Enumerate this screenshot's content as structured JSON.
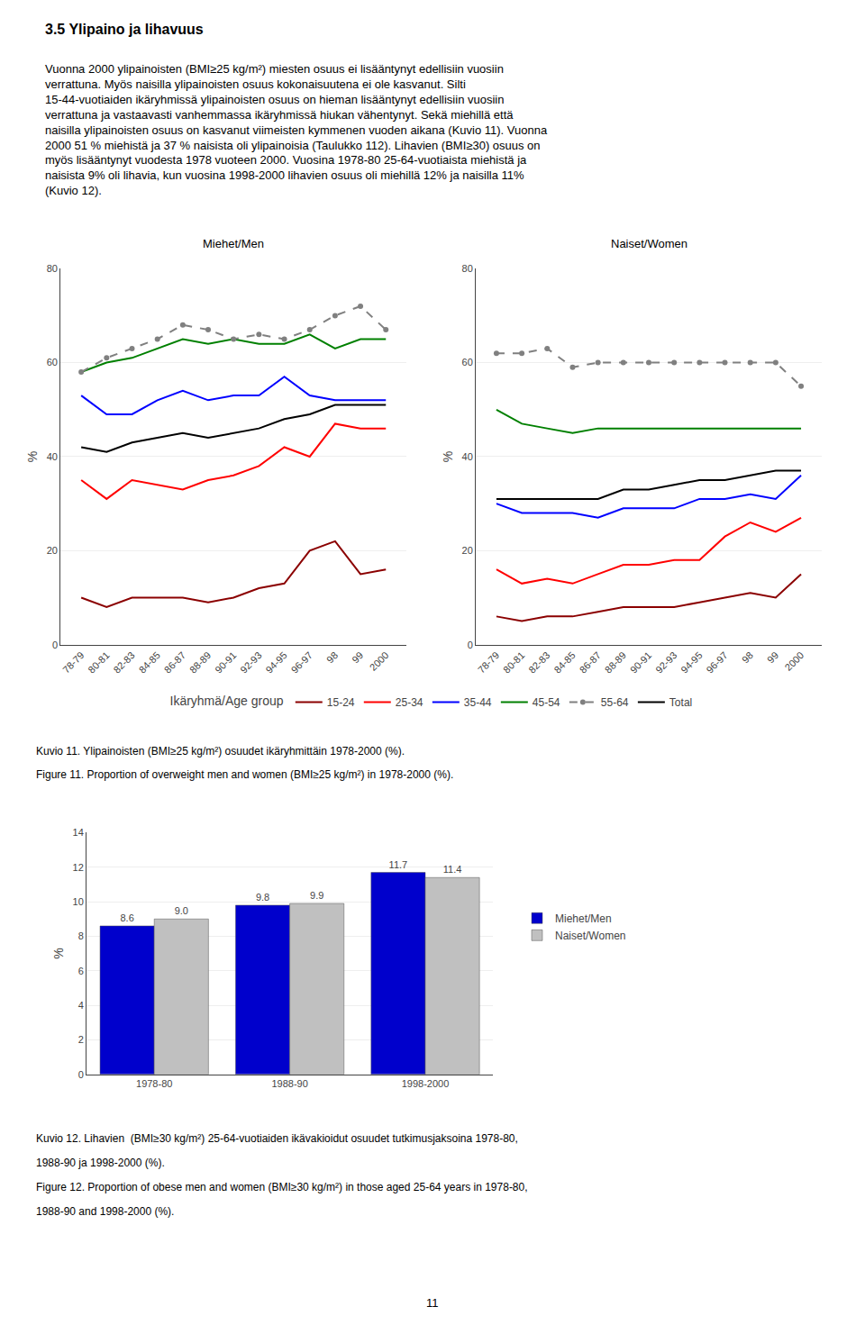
{
  "chart_data": [
    {
      "type": "line",
      "title": "Miehet/Men",
      "ylabel": "%",
      "categories": [
        "78-79",
        "80-81",
        "82-83",
        "84-85",
        "86-87",
        "88-89",
        "90-91",
        "92-93",
        "94-95",
        "96-97",
        "98",
        "99",
        "2000"
      ],
      "series": [
        {
          "name": "15-24",
          "color": "#8B0000",
          "values": [
            10,
            8,
            10,
            10,
            10,
            9,
            10,
            12,
            13,
            20,
            22,
            15,
            16
          ]
        },
        {
          "name": "25-34",
          "color": "#FF0000",
          "values": [
            35,
            31,
            35,
            34,
            33,
            35,
            36,
            38,
            42,
            40,
            47,
            46,
            46
          ]
        },
        {
          "name": "35-44",
          "color": "#0000FF",
          "values": [
            53,
            49,
            49,
            52,
            54,
            52,
            53,
            53,
            57,
            53,
            52,
            52,
            52
          ]
        },
        {
          "name": "45-54",
          "color": "#008000",
          "values": [
            58,
            60,
            61,
            63,
            65,
            64,
            65,
            64,
            64,
            66,
            63,
            65,
            65
          ]
        },
        {
          "name": "55-64",
          "color": "#808080",
          "line_style": "dashed",
          "marker": "circle",
          "values": [
            58,
            61,
            63,
            65,
            68,
            67,
            65,
            66,
            65,
            67,
            70,
            72,
            67
          ]
        },
        {
          "name": "Total",
          "color": "#000000",
          "values": [
            42,
            41,
            43,
            44,
            45,
            44,
            45,
            46,
            48,
            49,
            51,
            51,
            51
          ]
        }
      ],
      "ylim": [
        0,
        80
      ],
      "yticks": [
        0,
        20,
        40,
        60,
        80
      ],
      "grid": true,
      "legend": "bottom",
      "annotations": [
        "3.5 Ylipaino ja lihavuus",
        "Vuonna 2000 ylipainoisten (BMI≥25 kg/m²) miesten osuus ei lisääntynyt edellisiin vuosiin verrattuna. Myös naisilla ylipainoisten osuus kokonaisuutena ei ole kasvanut. Silti 15-44-vuotiaiden ikäryhmissä ylipainoisten osuus on hieman lisääntynyt edellisiin vuosiin verrattuna ja vastaavasti vanhemmassa ikäryhmissä hiukan vähentynyt. Sekä miehillä että naisilla ylipainoisten osuus on kasvanut viimeisten kymmenen vuoden aikana (Kuvio 11). Vuonna 2000 51 % miehistä ja 37 % naisista oli ylipainoisia (Taulukko 112). Lihavien (BMI≥30) osuus on myös lisääntynyt vuodesta 1978 vuoteen 2000. Vuosina 1978-80 25-64-vuotiaista miehistä ja naisista 9% oli lihavia, kun vuosina 1998-2000 lihavien osuus oli miehillä 12% ja naisilla 11% (Kuvio 12).",
        "Ikäryhmä/Age group"
      ]
    },
    {
      "type": "line",
      "title": "Naiset/Women",
      "ylabel": "%",
      "categories": [
        "78-79",
        "80-81",
        "82-83",
        "84-85",
        "86-87",
        "88-89",
        "90-91",
        "92-93",
        "94-95",
        "96-97",
        "98",
        "99",
        "2000"
      ],
      "series": [
        {
          "name": "15-24",
          "color": "#8B0000",
          "values": [
            6,
            5,
            6,
            6,
            7,
            8,
            8,
            8,
            9,
            10,
            11,
            10,
            15
          ]
        },
        {
          "name": "25-34",
          "color": "#FF0000",
          "values": [
            16,
            13,
            14,
            13,
            15,
            17,
            17,
            18,
            18,
            23,
            26,
            24,
            27
          ]
        },
        {
          "name": "35-44",
          "color": "#0000FF",
          "values": [
            30,
            28,
            28,
            28,
            27,
            29,
            29,
            29,
            31,
            31,
            32,
            31,
            36
          ]
        },
        {
          "name": "45-54",
          "color": "#008000",
          "values": [
            50,
            47,
            46,
            45,
            46,
            46,
            46,
            46,
            46,
            46,
            46,
            46,
            46
          ]
        },
        {
          "name": "55-64",
          "color": "#808080",
          "line_style": "dashed",
          "marker": "circle",
          "values": [
            62,
            62,
            63,
            59,
            60,
            60,
            60,
            60,
            60,
            60,
            60,
            60,
            55
          ]
        },
        {
          "name": "Total",
          "color": "#000000",
          "values": [
            31,
            31,
            31,
            31,
            31,
            33,
            33,
            34,
            35,
            35,
            36,
            37,
            37
          ]
        }
      ],
      "ylim": [
        0,
        80
      ],
      "yticks": [
        0,
        20,
        40,
        60,
        80
      ],
      "grid": true,
      "annotations": [
        "Kuvio 11. Ylipainoisten (BMI≥25 kg/m²) osuudet ikäryhmittäin 1978-2000 (%).",
        "Figure 11. Proportion of overweight men and women (BMI≥25 kg/m²) in 1978-2000 (%)."
      ]
    },
    {
      "type": "bar",
      "ylabel": "%",
      "categories": [
        "1978-80",
        "1988-90",
        "1998-2000"
      ],
      "series": [
        {
          "name": "Miehet/Men",
          "color": "#0000CC",
          "values": [
            8.6,
            9.8,
            11.7
          ]
        },
        {
          "name": "Naiset/Women",
          "color": "#C0C0C0",
          "values": [
            9.0,
            9.9,
            11.4
          ],
          "value_labels": [
            "9.0",
            "9.9",
            "11.4"
          ]
        }
      ],
      "ylim": [
        0,
        14
      ],
      "yticks": [
        0,
        2,
        4,
        6,
        8,
        10,
        12,
        14
      ],
      "grid": true,
      "legend": "right",
      "data_labels": true,
      "annotations": [
        "Kuvio 12. Lihavien  (BMI≥30 kg/m²) 25-64-vuotiaiden ikävakioidut osuudet tutkimusjaksoina 1978-80,",
        "1988-90 ja 1998-2000 (%).",
        "Figure 12. Proportion of obese men and women (BMI≥30 kg/m²) in those aged 25-64 years in 1978-80,",
        "1988-90 and 1998-2000 (%).",
        "11"
      ]
    }
  ]
}
